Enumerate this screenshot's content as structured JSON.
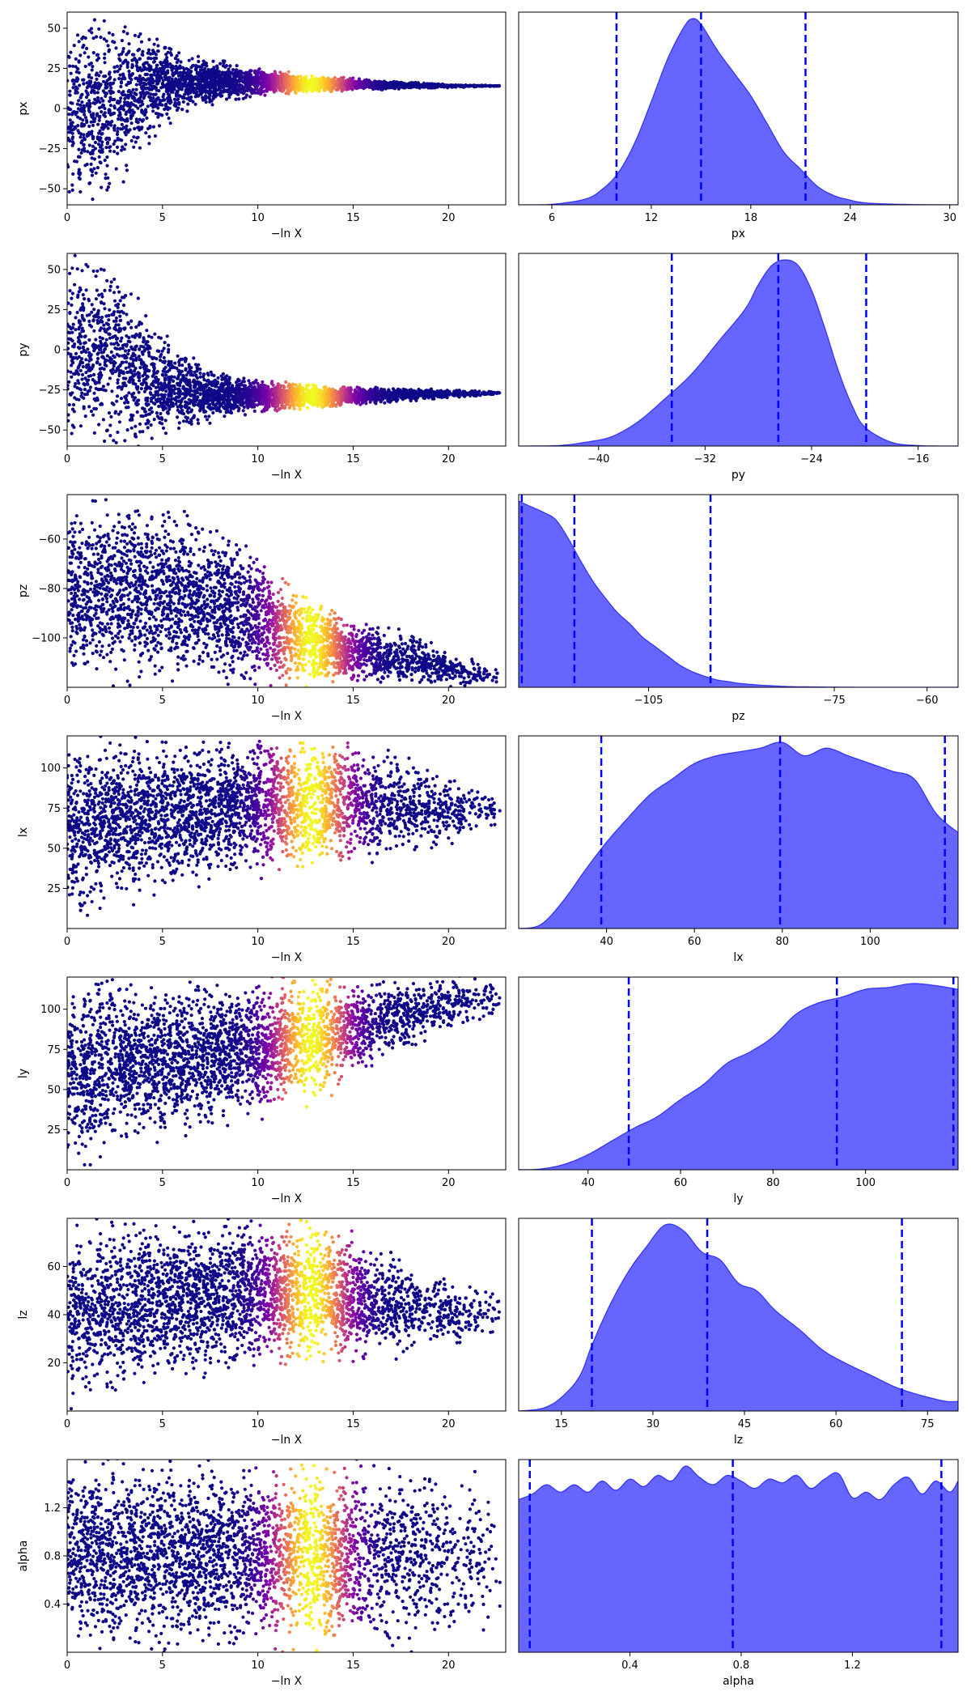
{
  "figure": {
    "layout": "7 rows x 2 columns",
    "scatter_xlabel": "−ln X",
    "colormap": "plasma",
    "density_color": "#0000ff",
    "density_fill_alpha": 0.6,
    "quantile_line_color": "#0000ff",
    "quantile_line_style": "dashed"
  },
  "chart_data": [
    {
      "type": "scatter",
      "param": "px",
      "title": "",
      "xlabel": "−ln X",
      "ylabel": "px",
      "xlim": [
        0,
        23
      ],
      "ylim": [
        -60,
        60
      ],
      "xticks": [
        0,
        5,
        10,
        15,
        20
      ],
      "yticks": [
        -50,
        -25,
        0,
        25,
        50
      ],
      "xticklabels": [
        "0",
        "5",
        "10",
        "15",
        "20"
      ],
      "yticklabels": [
        "−50",
        "−25",
        "0",
        "25",
        "50"
      ],
      "envelope": [
        [
          0,
          -60,
          60
        ],
        [
          2,
          -60,
          60
        ],
        [
          3,
          -45,
          58
        ],
        [
          4,
          -25,
          50
        ],
        [
          5,
          -13,
          44
        ],
        [
          6,
          -5,
          38
        ],
        [
          7,
          0,
          33
        ],
        [
          8,
          3,
          30
        ],
        [
          9,
          5,
          28
        ],
        [
          10,
          7,
          25
        ],
        [
          11,
          8,
          24
        ],
        [
          12,
          9,
          22
        ],
        [
          13,
          10,
          20
        ],
        [
          15,
          11,
          19
        ],
        [
          17,
          12,
          17
        ],
        [
          19,
          12.5,
          16
        ],
        [
          20.5,
          13,
          15
        ],
        [
          22,
          13.5,
          14.5
        ],
        [
          22.7,
          13.8,
          14.2
        ]
      ],
      "color_peak": 12.8,
      "color_width": 1.4
    },
    {
      "type": "area",
      "param": "px",
      "title": "",
      "xlabel": "px",
      "ylabel": "",
      "xlim": [
        4,
        30.5
      ],
      "xticks": [
        6,
        12,
        18,
        24,
        30
      ],
      "xticklabels": [
        "6",
        "12",
        "18",
        "24",
        "30"
      ],
      "x": [
        4,
        6,
        8,
        9,
        10,
        11,
        12,
        13,
        14,
        14.5,
        15,
        16,
        17,
        18,
        19,
        20,
        21,
        22,
        23,
        24,
        25,
        27,
        30,
        30.5
      ],
      "density": [
        0,
        0.003,
        0.03,
        0.08,
        0.17,
        0.33,
        0.55,
        0.78,
        0.95,
        0.99,
        0.96,
        0.82,
        0.7,
        0.58,
        0.43,
        0.28,
        0.19,
        0.1,
        0.05,
        0.025,
        0.01,
        0.003,
        0,
        0
      ],
      "quantiles": [
        9.9,
        15.0,
        21.3
      ]
    },
    {
      "type": "scatter",
      "param": "py",
      "title": "",
      "xlabel": "−ln X",
      "ylabel": "py",
      "xlim": [
        0,
        23
      ],
      "ylim": [
        -60,
        60
      ],
      "xticks": [
        0,
        5,
        10,
        15,
        20
      ],
      "yticks": [
        -50,
        -25,
        0,
        25,
        50
      ],
      "xticklabels": [
        "0",
        "5",
        "10",
        "15",
        "20"
      ],
      "yticklabels": [
        "−50",
        "−25",
        "0",
        "25",
        "50"
      ],
      "envelope": [
        [
          0,
          -60,
          60
        ],
        [
          2,
          -60,
          60
        ],
        [
          3,
          -60,
          45
        ],
        [
          4,
          -60,
          25
        ],
        [
          5,
          -55,
          10
        ],
        [
          6,
          -50,
          0
        ],
        [
          7,
          -47,
          -7
        ],
        [
          8,
          -44,
          -12
        ],
        [
          9,
          -42,
          -15
        ],
        [
          10,
          -40,
          -18
        ],
        [
          12,
          -38,
          -20
        ],
        [
          14,
          -36,
          -22
        ],
        [
          16,
          -34,
          -23
        ],
        [
          18,
          -32,
          -24
        ],
        [
          20,
          -30,
          -25
        ],
        [
          21.5,
          -29,
          -25.5
        ],
        [
          22.7,
          -28,
          -26
        ]
      ],
      "color_peak": 12.8,
      "color_width": 1.4
    },
    {
      "type": "area",
      "param": "py",
      "title": "",
      "xlabel": "py",
      "ylabel": "",
      "xlim": [
        -46,
        -13
      ],
      "xticks": [
        -40,
        -32,
        -24,
        -16
      ],
      "xticklabels": [
        "−40",
        "−32",
        "−24",
        "−16"
      ],
      "x": [
        -46,
        -43,
        -41,
        -39,
        -37,
        -35,
        -33,
        -31,
        -29,
        -28,
        -27,
        -26,
        -25,
        -24,
        -23,
        -22,
        -21,
        -20,
        -18,
        -16,
        -14,
        -13
      ],
      "density": [
        0,
        0.003,
        0.02,
        0.05,
        0.13,
        0.25,
        0.38,
        0.55,
        0.72,
        0.85,
        0.95,
        0.98,
        0.95,
        0.82,
        0.62,
        0.4,
        0.22,
        0.1,
        0.02,
        0.003,
        0,
        0
      ],
      "quantiles": [
        -34.5,
        -26.5,
        -19.9
      ]
    },
    {
      "type": "scatter",
      "param": "pz",
      "title": "",
      "xlabel": "−ln X",
      "ylabel": "pz",
      "xlim": [
        0,
        23
      ],
      "ylim": [
        -120,
        -42
      ],
      "xticks": [
        0,
        5,
        10,
        15,
        20
      ],
      "yticks": [
        -100,
        -80,
        -60
      ],
      "xticklabels": [
        "0",
        "5",
        "10",
        "15",
        "20"
      ],
      "yticklabels": [
        "−100",
        "−80",
        "−60"
      ],
      "envelope": [
        [
          0,
          -120,
          -42
        ],
        [
          3,
          -120,
          -42
        ],
        [
          4,
          -120,
          -43
        ],
        [
          6,
          -120,
          -47
        ],
        [
          8,
          -120,
          -53
        ],
        [
          10,
          -120,
          -64
        ],
        [
          12,
          -120,
          -80
        ],
        [
          14,
          -120,
          -88
        ],
        [
          16,
          -120,
          -94
        ],
        [
          18,
          -120,
          -98
        ],
        [
          20,
          -120,
          -105
        ],
        [
          22.7,
          -120,
          -112
        ]
      ],
      "color_peak": 12.8,
      "color_width": 1.4
    },
    {
      "type": "area",
      "param": "pz",
      "title": "",
      "xlabel": "pz",
      "ylabel": "",
      "xlim": [
        -126,
        -55
      ],
      "xticks": [
        -105,
        -75,
        -60
      ],
      "xticklabels": [
        "−105",
        "−75",
        "−60"
      ],
      "x": [
        -126,
        -124,
        -122,
        -120,
        -118,
        -116,
        -114,
        -112,
        -110,
        -108,
        -106,
        -104,
        -102,
        -100,
        -98,
        -96,
        -94,
        -92,
        -90,
        -86,
        -82,
        -78,
        -74,
        -70,
        -60,
        -55
      ],
      "density": [
        1.0,
        0.97,
        0.94,
        0.9,
        0.8,
        0.68,
        0.57,
        0.48,
        0.4,
        0.34,
        0.27,
        0.22,
        0.17,
        0.12,
        0.085,
        0.06,
        0.04,
        0.03,
        0.02,
        0.01,
        0.004,
        0.002,
        0.001,
        0,
        0,
        0
      ],
      "quantiles": [
        -125.5,
        -117.0,
        -95.0
      ]
    },
    {
      "type": "scatter",
      "param": "lx",
      "title": "",
      "xlabel": "−ln X",
      "ylabel": "lx",
      "xlim": [
        0,
        23
      ],
      "ylim": [
        0,
        120
      ],
      "xticks": [
        0,
        5,
        10,
        15,
        20
      ],
      "yticks": [
        25,
        50,
        75,
        100
      ],
      "xticklabels": [
        "0",
        "5",
        "10",
        "15",
        "20"
      ],
      "yticklabels": [
        "25",
        "50",
        "75",
        "100"
      ],
      "envelope": [
        [
          0,
          0,
          120
        ],
        [
          1,
          5,
          120
        ],
        [
          3,
          15,
          120
        ],
        [
          5,
          22,
          120
        ],
        [
          7,
          27,
          120
        ],
        [
          9,
          30,
          120
        ],
        [
          11,
          33,
          120
        ],
        [
          13,
          35,
          120
        ],
        [
          15,
          38,
          118
        ],
        [
          17,
          42,
          112
        ],
        [
          19,
          48,
          102
        ],
        [
          21,
          55,
          92
        ],
        [
          22.7,
          58,
          88
        ]
      ],
      "color_peak": 12.8,
      "color_width": 1.4
    },
    {
      "type": "area",
      "param": "lx",
      "title": "",
      "xlabel": "lx",
      "ylabel": "",
      "xlim": [
        20,
        120
      ],
      "xticks": [
        40,
        60,
        80,
        100
      ],
      "xticklabels": [
        "40",
        "60",
        "80",
        "100"
      ],
      "x": [
        20,
        25,
        30,
        35,
        40,
        45,
        50,
        55,
        60,
        65,
        70,
        75,
        80,
        85,
        90,
        95,
        100,
        105,
        110,
        115,
        120
      ],
      "density": [
        0,
        0.02,
        0.14,
        0.3,
        0.45,
        0.58,
        0.7,
        0.78,
        0.86,
        0.9,
        0.92,
        0.94,
        0.97,
        0.9,
        0.94,
        0.9,
        0.86,
        0.82,
        0.78,
        0.6,
        0.5
      ],
      "quantiles": [
        38.8,
        79.5,
        117.0
      ]
    },
    {
      "type": "scatter",
      "param": "ly",
      "title": "",
      "xlabel": "−ln X",
      "ylabel": "ly",
      "xlim": [
        0,
        23
      ],
      "ylim": [
        0,
        120
      ],
      "xticks": [
        0,
        5,
        10,
        15,
        20
      ],
      "yticks": [
        25,
        50,
        75,
        100
      ],
      "xticklabels": [
        "0",
        "5",
        "10",
        "15",
        "20"
      ],
      "yticklabels": [
        "25",
        "50",
        "75",
        "100"
      ],
      "envelope": [
        [
          0,
          0,
          120
        ],
        [
          1,
          4,
          120
        ],
        [
          3,
          12,
          120
        ],
        [
          5,
          18,
          120
        ],
        [
          7,
          23,
          120
        ],
        [
          9,
          28,
          120
        ],
        [
          11,
          35,
          120
        ],
        [
          13,
          42,
          120
        ],
        [
          15,
          55,
          120
        ],
        [
          17,
          68,
          120
        ],
        [
          19,
          80,
          120
        ],
        [
          21,
          90,
          120
        ],
        [
          22.7,
          95,
          120
        ]
      ],
      "color_peak": 12.8,
      "color_width": 1.4
    },
    {
      "type": "area",
      "param": "ly",
      "title": "",
      "xlabel": "ly",
      "ylabel": "",
      "xlim": [
        25,
        120
      ],
      "xticks": [
        40,
        60,
        80,
        100
      ],
      "xticklabels": [
        "40",
        "60",
        "80",
        "100"
      ],
      "x": [
        25,
        30,
        35,
        40,
        45,
        50,
        55,
        60,
        65,
        70,
        75,
        80,
        85,
        90,
        95,
        100,
        105,
        110,
        115,
        120
      ],
      "density": [
        0,
        0.005,
        0.03,
        0.08,
        0.15,
        0.22,
        0.28,
        0.37,
        0.45,
        0.56,
        0.62,
        0.7,
        0.82,
        0.88,
        0.91,
        0.95,
        0.96,
        0.98,
        0.97,
        0.95
      ],
      "quantiles": [
        48.8,
        93.8,
        119.0
      ]
    },
    {
      "type": "scatter",
      "param": "lz",
      "title": "",
      "xlabel": "−ln X",
      "ylabel": "lz",
      "xlim": [
        0,
        23
      ],
      "ylim": [
        0,
        80
      ],
      "xticks": [
        0,
        5,
        10,
        15,
        20
      ],
      "yticks": [
        20,
        40,
        60
      ],
      "xticklabels": [
        "0",
        "5",
        "10",
        "15",
        "20"
      ],
      "yticklabels": [
        "20",
        "40",
        "60"
      ],
      "envelope": [
        [
          0,
          0,
          80
        ],
        [
          1,
          4,
          80
        ],
        [
          3,
          9,
          80
        ],
        [
          5,
          12,
          80
        ],
        [
          7,
          14,
          80
        ],
        [
          9,
          16,
          80
        ],
        [
          11,
          18,
          80
        ],
        [
          13,
          19,
          79
        ],
        [
          15,
          19,
          74
        ],
        [
          17,
          21,
          66
        ],
        [
          19,
          24,
          58
        ],
        [
          21,
          28,
          52
        ],
        [
          22.7,
          30,
          50
        ]
      ],
      "color_peak": 12.8,
      "color_width": 1.4
    },
    {
      "type": "area",
      "param": "lz",
      "title": "",
      "xlabel": "lz",
      "ylabel": "",
      "xlim": [
        8,
        80
      ],
      "xticks": [
        15,
        30,
        45,
        60,
        75
      ],
      "xticklabels": [
        "15",
        "30",
        "45",
        "60",
        "75"
      ],
      "x": [
        8,
        12,
        15,
        18,
        20,
        23,
        26,
        29,
        32,
        35,
        38,
        41,
        44,
        47,
        50,
        54,
        58,
        62,
        66,
        70,
        74,
        78,
        80
      ],
      "density": [
        0,
        0.015,
        0.07,
        0.18,
        0.34,
        0.55,
        0.72,
        0.85,
        0.96,
        0.93,
        0.82,
        0.78,
        0.66,
        0.62,
        0.52,
        0.42,
        0.31,
        0.24,
        0.18,
        0.12,
        0.08,
        0.05,
        0.05
      ],
      "quantiles": [
        20.0,
        38.9,
        70.8
      ]
    },
    {
      "type": "scatter",
      "param": "alpha",
      "title": "",
      "xlabel": "−ln X",
      "ylabel": "alpha",
      "xlim": [
        0,
        23
      ],
      "ylim": [
        0,
        1.6
      ],
      "xticks": [
        0,
        5,
        10,
        15,
        20
      ],
      "yticks": [
        0.4,
        0.8,
        1.2
      ],
      "xticklabels": [
        "0",
        "5",
        "10",
        "15",
        "20"
      ],
      "yticklabels": [
        "0.4",
        "0.8",
        "1.2"
      ],
      "envelope": [
        [
          0,
          0,
          1.6
        ],
        [
          22.7,
          0,
          1.6
        ]
      ],
      "color_peak": 12.8,
      "color_width": 1.4
    },
    {
      "type": "area",
      "param": "alpha",
      "title": "",
      "xlabel": "alpha",
      "ylabel": "",
      "xlim": [
        0,
        1.58
      ],
      "xticks": [
        0.4,
        0.8,
        1.2
      ],
      "xticklabels": [
        "0.4",
        "0.8",
        "1.2"
      ],
      "x": [
        0,
        0.05,
        0.1,
        0.15,
        0.2,
        0.25,
        0.3,
        0.35,
        0.4,
        0.45,
        0.5,
        0.55,
        0.6,
        0.65,
        0.7,
        0.75,
        0.8,
        0.85,
        0.9,
        0.95,
        1.0,
        1.05,
        1.1,
        1.15,
        1.2,
        1.25,
        1.3,
        1.35,
        1.4,
        1.45,
        1.5,
        1.55,
        1.58
      ],
      "density": [
        0.82,
        0.85,
        0.9,
        0.86,
        0.9,
        0.86,
        0.92,
        0.87,
        0.93,
        0.89,
        0.95,
        0.92,
        1.0,
        0.94,
        0.9,
        0.95,
        0.92,
        0.88,
        0.93,
        0.91,
        0.95,
        0.88,
        0.93,
        0.96,
        0.83,
        0.86,
        0.82,
        0.9,
        0.94,
        0.85,
        0.92,
        0.86,
        0.92
      ],
      "quantiles": [
        0.04,
        0.77,
        1.52
      ]
    }
  ]
}
